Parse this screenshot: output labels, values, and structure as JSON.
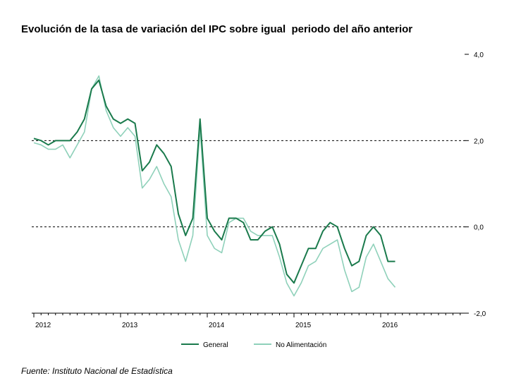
{
  "chart_data": {
    "type": "line",
    "title": "Evolución de la tasa de variación del IPC sobre igual  periodo del año anterior",
    "source": "Fuente: Instituto Nacional de Estadística",
    "x_start_year": 2012,
    "x_tick_labels": [
      "2012",
      "2013",
      "2014",
      "2015",
      "2016"
    ],
    "y_tick_labels": [
      "4,0",
      "2,0",
      "0,0",
      "-2,0"
    ],
    "ylim": [
      -2,
      4
    ],
    "dashed_reference_lines": [
      2,
      0
    ],
    "legend_position": "bottom",
    "colors": {
      "general": "#1a7a4c",
      "no_alimentacion": "#8fd1ba"
    },
    "series": [
      {
        "name": "General",
        "values": [
          2.05,
          2.0,
          1.9,
          2.0,
          2.0,
          2.0,
          2.2,
          2.5,
          3.2,
          3.4,
          2.8,
          2.5,
          2.4,
          2.5,
          2.4,
          1.3,
          1.5,
          1.9,
          1.7,
          1.4,
          0.3,
          -0.2,
          0.2,
          2.5,
          0.2,
          -0.1,
          -0.3,
          0.2,
          0.2,
          0.1,
          -0.3,
          -0.3,
          -0.1,
          0.0,
          -0.4,
          -1.1,
          -1.3,
          -0.9,
          -0.5,
          -0.5,
          -0.1,
          0.1,
          0.0,
          -0.5,
          -0.9,
          -0.8,
          -0.2,
          0.0,
          -0.2,
          -0.8,
          -0.8
        ]
      },
      {
        "name": "No Alimentación",
        "values": [
          1.95,
          1.9,
          1.8,
          1.8,
          1.9,
          1.6,
          1.9,
          2.2,
          3.2,
          3.5,
          2.7,
          2.3,
          2.1,
          2.3,
          2.1,
          0.9,
          1.1,
          1.4,
          1.0,
          0.7,
          -0.3,
          -0.8,
          -0.2,
          2.3,
          -0.2,
          -0.5,
          -0.6,
          0.1,
          0.2,
          0.2,
          -0.1,
          -0.2,
          -0.2,
          -0.2,
          -0.7,
          -1.3,
          -1.6,
          -1.3,
          -0.9,
          -0.8,
          -0.5,
          -0.4,
          -0.3,
          -1.0,
          -1.5,
          -1.4,
          -0.7,
          -0.4,
          -0.8,
          -1.2,
          -1.4
        ]
      }
    ]
  }
}
